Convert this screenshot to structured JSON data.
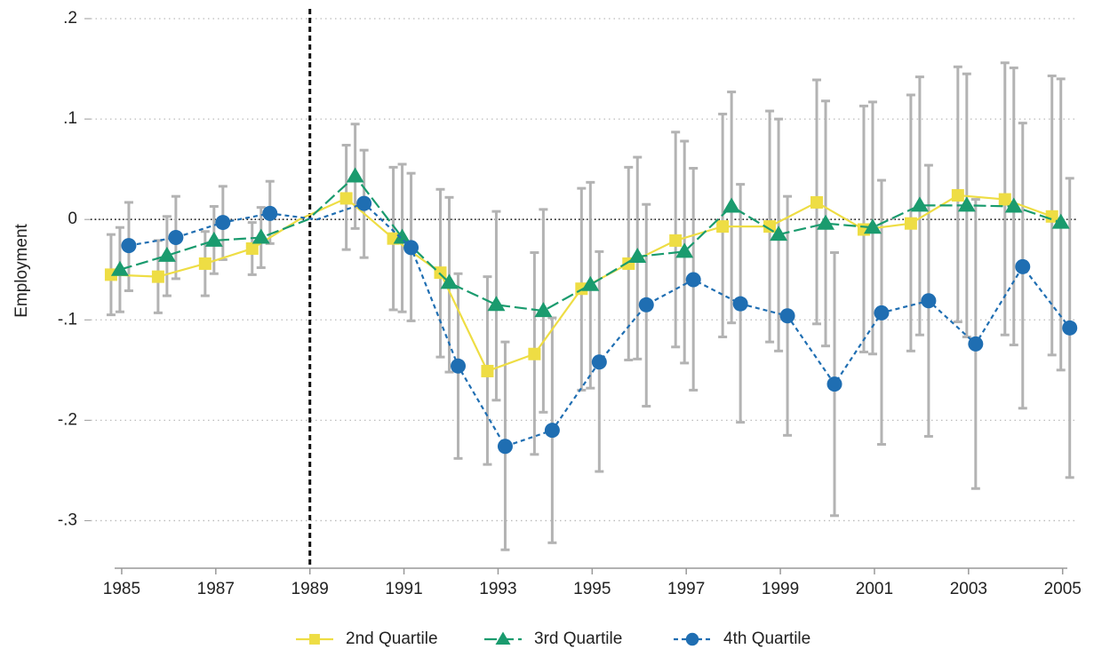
{
  "chart_data": {
    "type": "line",
    "y_label": "Employment",
    "x": [
      1985,
      1986,
      1987,
      1988,
      1989,
      1990,
      1991,
      1992,
      1993,
      1994,
      1995,
      1996,
      1997,
      1998,
      1999,
      2000,
      2001,
      2002,
      2003,
      2004,
      2005
    ],
    "xlim": [
      1984.85,
      2005.1
    ],
    "xticks": [
      1985,
      1987,
      1989,
      1991,
      1993,
      1995,
      1997,
      1999,
      2001,
      2003,
      2005
    ],
    "ylim": [
      -0.35,
      0.2
    ],
    "yticks": [
      {
        "value": -0.3,
        "label": "-.3"
      },
      {
        "value": -0.2,
        "label": "-.2"
      },
      {
        "value": -0.1,
        "label": "-.1"
      },
      0,
      {
        "value": 0.1,
        "label": ".1"
      },
      {
        "value": 0.2,
        "label": ".2"
      }
    ],
    "grid": true,
    "xline": 1989,
    "yline": 0,
    "legend": "bottom",
    "errorbar_color": "#b3b3b3",
    "series": [
      {
        "name": "2nd Quartile",
        "color": "#eedd44",
        "marker": "square",
        "linestyle": "solid",
        "values": [
          -0.055,
          -0.057,
          -0.044,
          -0.029,
          0,
          0.021,
          -0.019,
          -0.053,
          -0.151,
          -0.134,
          -0.069,
          -0.044,
          -0.021,
          -0.007,
          -0.007,
          0.017,
          -0.01,
          -0.004,
          0.024,
          0.02,
          0.003
        ],
        "ci_low": [
          -0.095,
          -0.093,
          -0.076,
          -0.055,
          null,
          -0.03,
          -0.09,
          -0.137,
          -0.244,
          -0.234,
          -0.17,
          -0.14,
          -0.127,
          -0.117,
          -0.122,
          -0.104,
          -0.132,
          -0.131,
          -0.102,
          -0.115,
          -0.135
        ],
        "ci_high": [
          -0.015,
          -0.021,
          -0.012,
          -0.003,
          null,
          0.074,
          0.052,
          0.03,
          -0.057,
          -0.033,
          0.031,
          0.052,
          0.087,
          0.105,
          0.108,
          0.139,
          0.113,
          0.124,
          0.152,
          0.156,
          0.143
        ]
      },
      {
        "name": "3rd Quartile",
        "color": "#1a9b6e",
        "marker": "triangle",
        "linestyle": "longdash",
        "values": [
          -0.05,
          -0.036,
          -0.021,
          -0.018,
          0,
          0.043,
          -0.018,
          -0.063,
          -0.085,
          -0.091,
          -0.065,
          -0.037,
          -0.032,
          0.013,
          -0.015,
          -0.004,
          -0.008,
          0.014,
          0.014,
          0.013,
          -0.003
        ],
        "ci_low": [
          -0.092,
          -0.076,
          -0.054,
          -0.048,
          null,
          -0.009,
          -0.092,
          -0.152,
          -0.18,
          -0.192,
          -0.168,
          -0.139,
          -0.143,
          -0.103,
          -0.131,
          -0.126,
          -0.134,
          -0.115,
          -0.117,
          -0.125,
          -0.15
        ],
        "ci_high": [
          -0.008,
          0.003,
          0.013,
          0.012,
          null,
          0.095,
          0.055,
          0.022,
          0.008,
          0.01,
          0.037,
          0.062,
          0.078,
          0.127,
          0.1,
          0.118,
          0.117,
          0.142,
          0.145,
          0.151,
          0.14
        ]
      },
      {
        "name": "4th Quartile",
        "color": "#1f6eb2",
        "marker": "circle",
        "linestyle": "dash",
        "values": [
          -0.026,
          -0.018,
          -0.003,
          0.006,
          0,
          0.016,
          -0.028,
          -0.146,
          -0.226,
          -0.21,
          -0.142,
          -0.085,
          -0.06,
          -0.084,
          -0.096,
          -0.164,
          -0.093,
          -0.081,
          -0.124,
          -0.047,
          -0.108
        ],
        "ci_low": [
          -0.071,
          -0.059,
          -0.04,
          -0.024,
          null,
          -0.038,
          -0.101,
          -0.238,
          -0.329,
          -0.322,
          -0.251,
          -0.186,
          -0.17,
          -0.202,
          -0.215,
          -0.295,
          -0.224,
          -0.216,
          -0.268,
          -0.188,
          -0.257
        ],
        "ci_high": [
          0.017,
          0.023,
          0.033,
          0.038,
          null,
          0.069,
          0.046,
          -0.054,
          -0.122,
          -0.098,
          -0.032,
          0.015,
          0.051,
          0.035,
          0.023,
          -0.033,
          0.039,
          0.054,
          0.02,
          0.096,
          0.041
        ]
      }
    ]
  }
}
